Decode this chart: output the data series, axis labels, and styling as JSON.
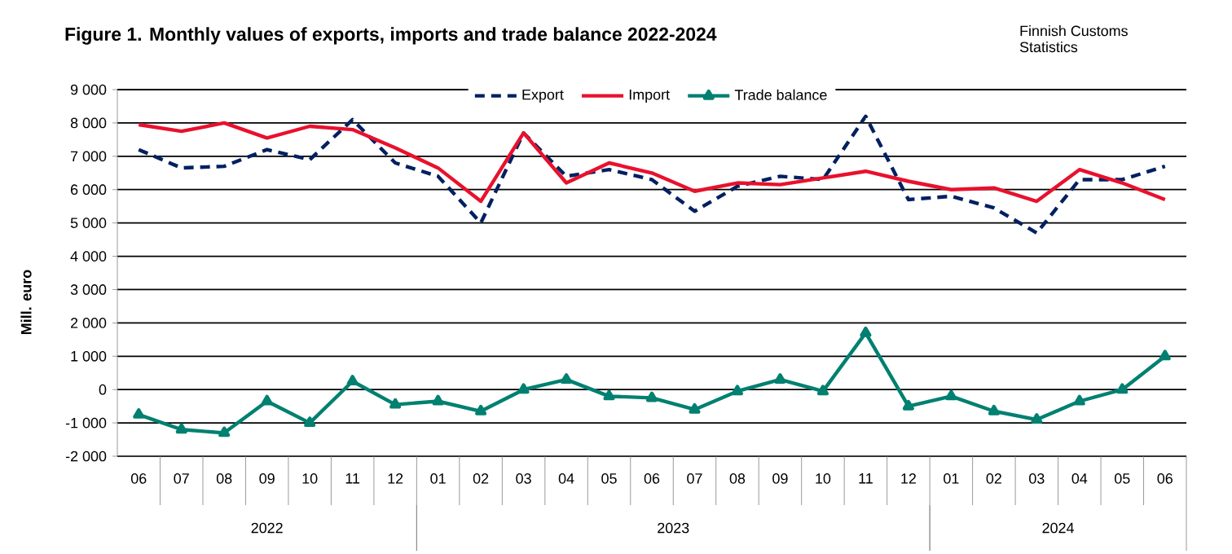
{
  "chart_data": {
    "type": "line",
    "title": "Figure 1. Monthly values of exports, imports and trade balance 2022-2024",
    "ylabel": "Mill. euro",
    "annotations": [
      "Finnish Customs Statistics",
      "2022",
      "2023",
      "2024"
    ],
    "categories": [
      "06",
      "07",
      "08",
      "09",
      "10",
      "11",
      "12",
      "01",
      "02",
      "03",
      "04",
      "05",
      "06",
      "07",
      "08",
      "09",
      "10",
      "11",
      "12",
      "01",
      "02",
      "03",
      "04",
      "05",
      "06"
    ],
    "series": [
      {
        "name": "Export",
        "color": "#002060",
        "line_style": "dashed",
        "marker": "none",
        "values": [
          7200,
          6650,
          6700,
          7200,
          6900,
          8100,
          6800,
          6400,
          5000,
          7700,
          6400,
          6600,
          6300,
          5350,
          6100,
          6400,
          6300,
          8200,
          5700,
          5800,
          5450,
          4700,
          6300,
          6300,
          6700
        ]
      },
      {
        "name": "Import",
        "color": "#e8112d",
        "line_style": "solid",
        "marker": "none",
        "values": [
          7950,
          7750,
          8000,
          7550,
          7900,
          7800,
          7250,
          6650,
          5650,
          7700,
          6200,
          6800,
          6500,
          5950,
          6200,
          6150,
          6350,
          6550,
          6250,
          6000,
          6050,
          5650,
          6600,
          6200,
          5700
        ]
      },
      {
        "name": "Trade balance",
        "color": "#008070",
        "line_style": "solid",
        "marker": "triangle",
        "values": [
          -750,
          -1200,
          -1300,
          -350,
          -1000,
          250,
          -450,
          -350,
          -650,
          0,
          300,
          -200,
          -250,
          -600,
          -50,
          300,
          -50,
          1700,
          -500,
          -200,
          -650,
          -900,
          -350,
          0,
          1000
        ]
      }
    ],
    "ylim": [
      -2000,
      9000
    ],
    "yticks": [
      {
        "value": -2000,
        "label": "-2 000"
      },
      {
        "value": -1000,
        "label": "-1 000"
      },
      0,
      {
        "value": 1000,
        "label": "1 000"
      },
      {
        "value": 2000,
        "label": "2 000"
      },
      {
        "value": 3000,
        "label": "3 000"
      },
      {
        "value": 4000,
        "label": "4 000"
      },
      {
        "value": 5000,
        "label": "5 000"
      },
      {
        "value": 6000,
        "label": "6 000"
      },
      {
        "value": 7000,
        "label": "7 000"
      },
      {
        "value": 8000,
        "label": "8 000"
      },
      {
        "value": 9000,
        "label": "9 000"
      }
    ],
    "grid": "y",
    "legend": "top"
  }
}
